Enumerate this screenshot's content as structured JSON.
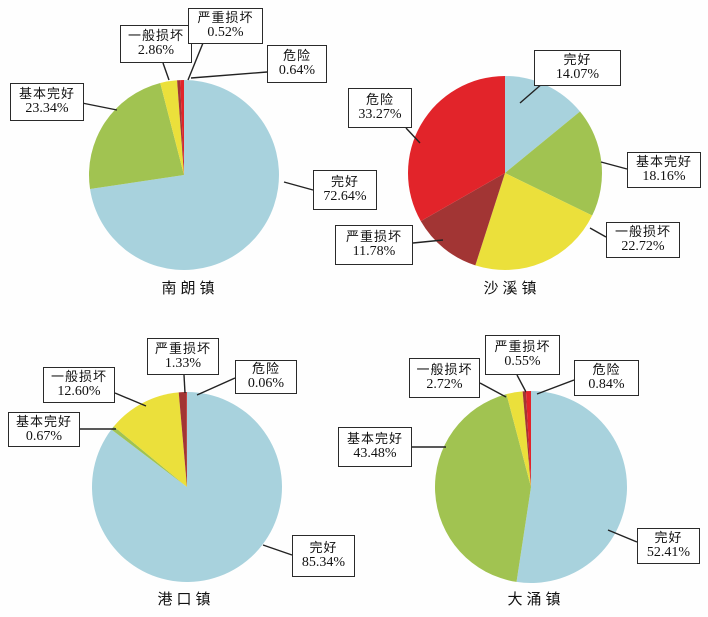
{
  "page": {
    "background": "#ffffff"
  },
  "colors": {
    "intact": "#a8d2dd",
    "basically_intact": "#a1c351",
    "general_damage": "#ebe03b",
    "serious_damage": "#a23534",
    "danger": "#e2242a"
  },
  "chart_data": [
    {
      "type": "pie",
      "title": "南朗镇",
      "slices": [
        {
          "label": "完好",
          "value": 72.64,
          "pct_label": "72.64%",
          "color_key": "intact"
        },
        {
          "label": "基本完好",
          "value": 23.34,
          "pct_label": "23.34%",
          "color_key": "basically_intact"
        },
        {
          "label": "一般损坏",
          "value": 2.86,
          "pct_label": "2.86%",
          "color_key": "general_damage"
        },
        {
          "label": "严重损坏",
          "value": 0.52,
          "pct_label": "0.52%",
          "color_key": "serious_damage"
        },
        {
          "label": "危险",
          "value": 0.64,
          "pct_label": "0.64%",
          "color_key": "danger"
        }
      ]
    },
    {
      "type": "pie",
      "title": "沙溪镇",
      "slices": [
        {
          "label": "完好",
          "value": 14.07,
          "pct_label": "14.07%",
          "color_key": "intact"
        },
        {
          "label": "基本完好",
          "value": 18.16,
          "pct_label": "18.16%",
          "color_key": "basically_intact"
        },
        {
          "label": "一般损坏",
          "value": 22.72,
          "pct_label": "22.72%",
          "color_key": "general_damage"
        },
        {
          "label": "严重损坏",
          "value": 11.78,
          "pct_label": "11.78%",
          "color_key": "serious_damage"
        },
        {
          "label": "危险",
          "value": 33.27,
          "pct_label": "33.27%",
          "color_key": "danger"
        }
      ]
    },
    {
      "type": "pie",
      "title": "港口镇",
      "slices": [
        {
          "label": "完好",
          "value": 85.34,
          "pct_label": "85.34%",
          "color_key": "intact"
        },
        {
          "label": "基本完好",
          "value": 0.67,
          "pct_label": "0.67%",
          "color_key": "basically_intact"
        },
        {
          "label": "一般损坏",
          "value": 12.6,
          "pct_label": "12.60%",
          "color_key": "general_damage"
        },
        {
          "label": "严重损坏",
          "value": 1.33,
          "pct_label": "1.33%",
          "color_key": "serious_damage"
        },
        {
          "label": "危险",
          "value": 0.06,
          "pct_label": "0.06%",
          "color_key": "danger"
        }
      ]
    },
    {
      "type": "pie",
      "title": "大涌镇",
      "slices": [
        {
          "label": "完好",
          "value": 52.41,
          "pct_label": "52.41%",
          "color_key": "intact"
        },
        {
          "label": "基本完好",
          "value": 43.48,
          "pct_label": "43.48%",
          "color_key": "basically_intact"
        },
        {
          "label": "一般损坏",
          "value": 2.72,
          "pct_label": "2.72%",
          "color_key": "general_damage"
        },
        {
          "label": "严重损坏",
          "value": 0.55,
          "pct_label": "0.55%",
          "color_key": "serious_damage"
        },
        {
          "label": "危险",
          "value": 0.84,
          "pct_label": "0.84%",
          "color_key": "danger"
        }
      ]
    }
  ]
}
